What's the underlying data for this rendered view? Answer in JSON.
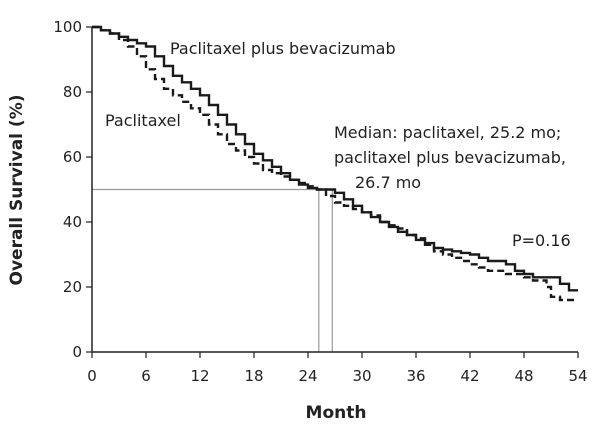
{
  "chart_data": {
    "type": "line",
    "title": "",
    "xlabel": "Month",
    "ylabel": "Overall Survival (%)",
    "xlim": [
      0,
      54
    ],
    "ylim": [
      0,
      100
    ],
    "xticks": [
      0,
      6,
      12,
      18,
      24,
      30,
      36,
      42,
      48,
      54
    ],
    "yticks": [
      0,
      20,
      40,
      60,
      80,
      100
    ],
    "grid": false,
    "series": [
      {
        "name": "Paclitaxel plus bevacizumab",
        "style": "solid",
        "color": "#1a1a1a",
        "x": [
          0,
          1,
          2,
          3,
          4,
          5,
          6,
          7,
          8,
          9,
          10,
          11,
          12,
          13,
          14,
          15,
          16,
          17,
          18,
          19,
          20,
          21,
          22,
          23,
          24,
          25,
          26,
          26.7,
          27,
          28,
          29,
          30,
          31,
          32,
          33,
          34,
          35,
          36,
          37,
          38,
          39,
          40,
          41,
          42,
          43,
          44,
          45,
          46,
          47,
          48,
          49,
          50,
          51,
          52,
          53,
          54
        ],
        "y": [
          100,
          99,
          98,
          97,
          96,
          95,
          94,
          91,
          88,
          85,
          83,
          81,
          79,
          76,
          73,
          70,
          67,
          64,
          61,
          59,
          57,
          55,
          53,
          51.5,
          50.5,
          50,
          50,
          50,
          49,
          47,
          45,
          43,
          41.5,
          40,
          38.5,
          37,
          36,
          34.5,
          33.5,
          32,
          31.5,
          31,
          30.5,
          30,
          29,
          28,
          28,
          27,
          25,
          24,
          23,
          23,
          23,
          21,
          19,
          19
        ]
      },
      {
        "name": "Paclitaxel",
        "style": "dashed",
        "color": "#1a1a1a",
        "x": [
          0,
          1,
          2,
          3,
          4,
          5,
          6,
          7,
          8,
          9,
          10,
          11,
          12,
          13,
          14,
          15,
          16,
          17,
          18,
          19,
          20,
          21,
          22,
          23,
          24,
          25,
          25.2,
          26,
          27,
          28,
          29,
          30,
          31,
          32,
          33,
          34,
          35,
          36,
          37,
          38,
          39,
          40,
          41,
          42,
          43,
          44,
          45,
          46,
          47,
          48,
          49,
          50,
          50.5,
          51,
          52,
          53,
          54
        ],
        "y": [
          100,
          99,
          98,
          96,
          94,
          91,
          87,
          84,
          81,
          79,
          77,
          75,
          73,
          70,
          67,
          64,
          62,
          60,
          58,
          56,
          55,
          54,
          53,
          52,
          51,
          50,
          50,
          48,
          46,
          45,
          44,
          43,
          42,
          40,
          39,
          38,
          36,
          35,
          33,
          31,
          30,
          29,
          28,
          27,
          26,
          25,
          25,
          24,
          24,
          23,
          22,
          22,
          20,
          17,
          16,
          16,
          16
        ]
      }
    ],
    "medians": [
      {
        "series": "Paclitaxel",
        "x": 25.2,
        "y": 50
      },
      {
        "series": "Paclitaxel plus bevacizumab",
        "x": 26.7,
        "y": 50
      }
    ],
    "annotations": {
      "label_combo": "Paclitaxel plus bevacizumab",
      "label_pac": "Paclitaxel",
      "median_line1": "Median: paclitaxel, 25.2 mo;",
      "median_line2": "paclitaxel plus bevacizumab,",
      "median_line3": "26.7 mo",
      "pvalue": "P=0.16"
    }
  }
}
